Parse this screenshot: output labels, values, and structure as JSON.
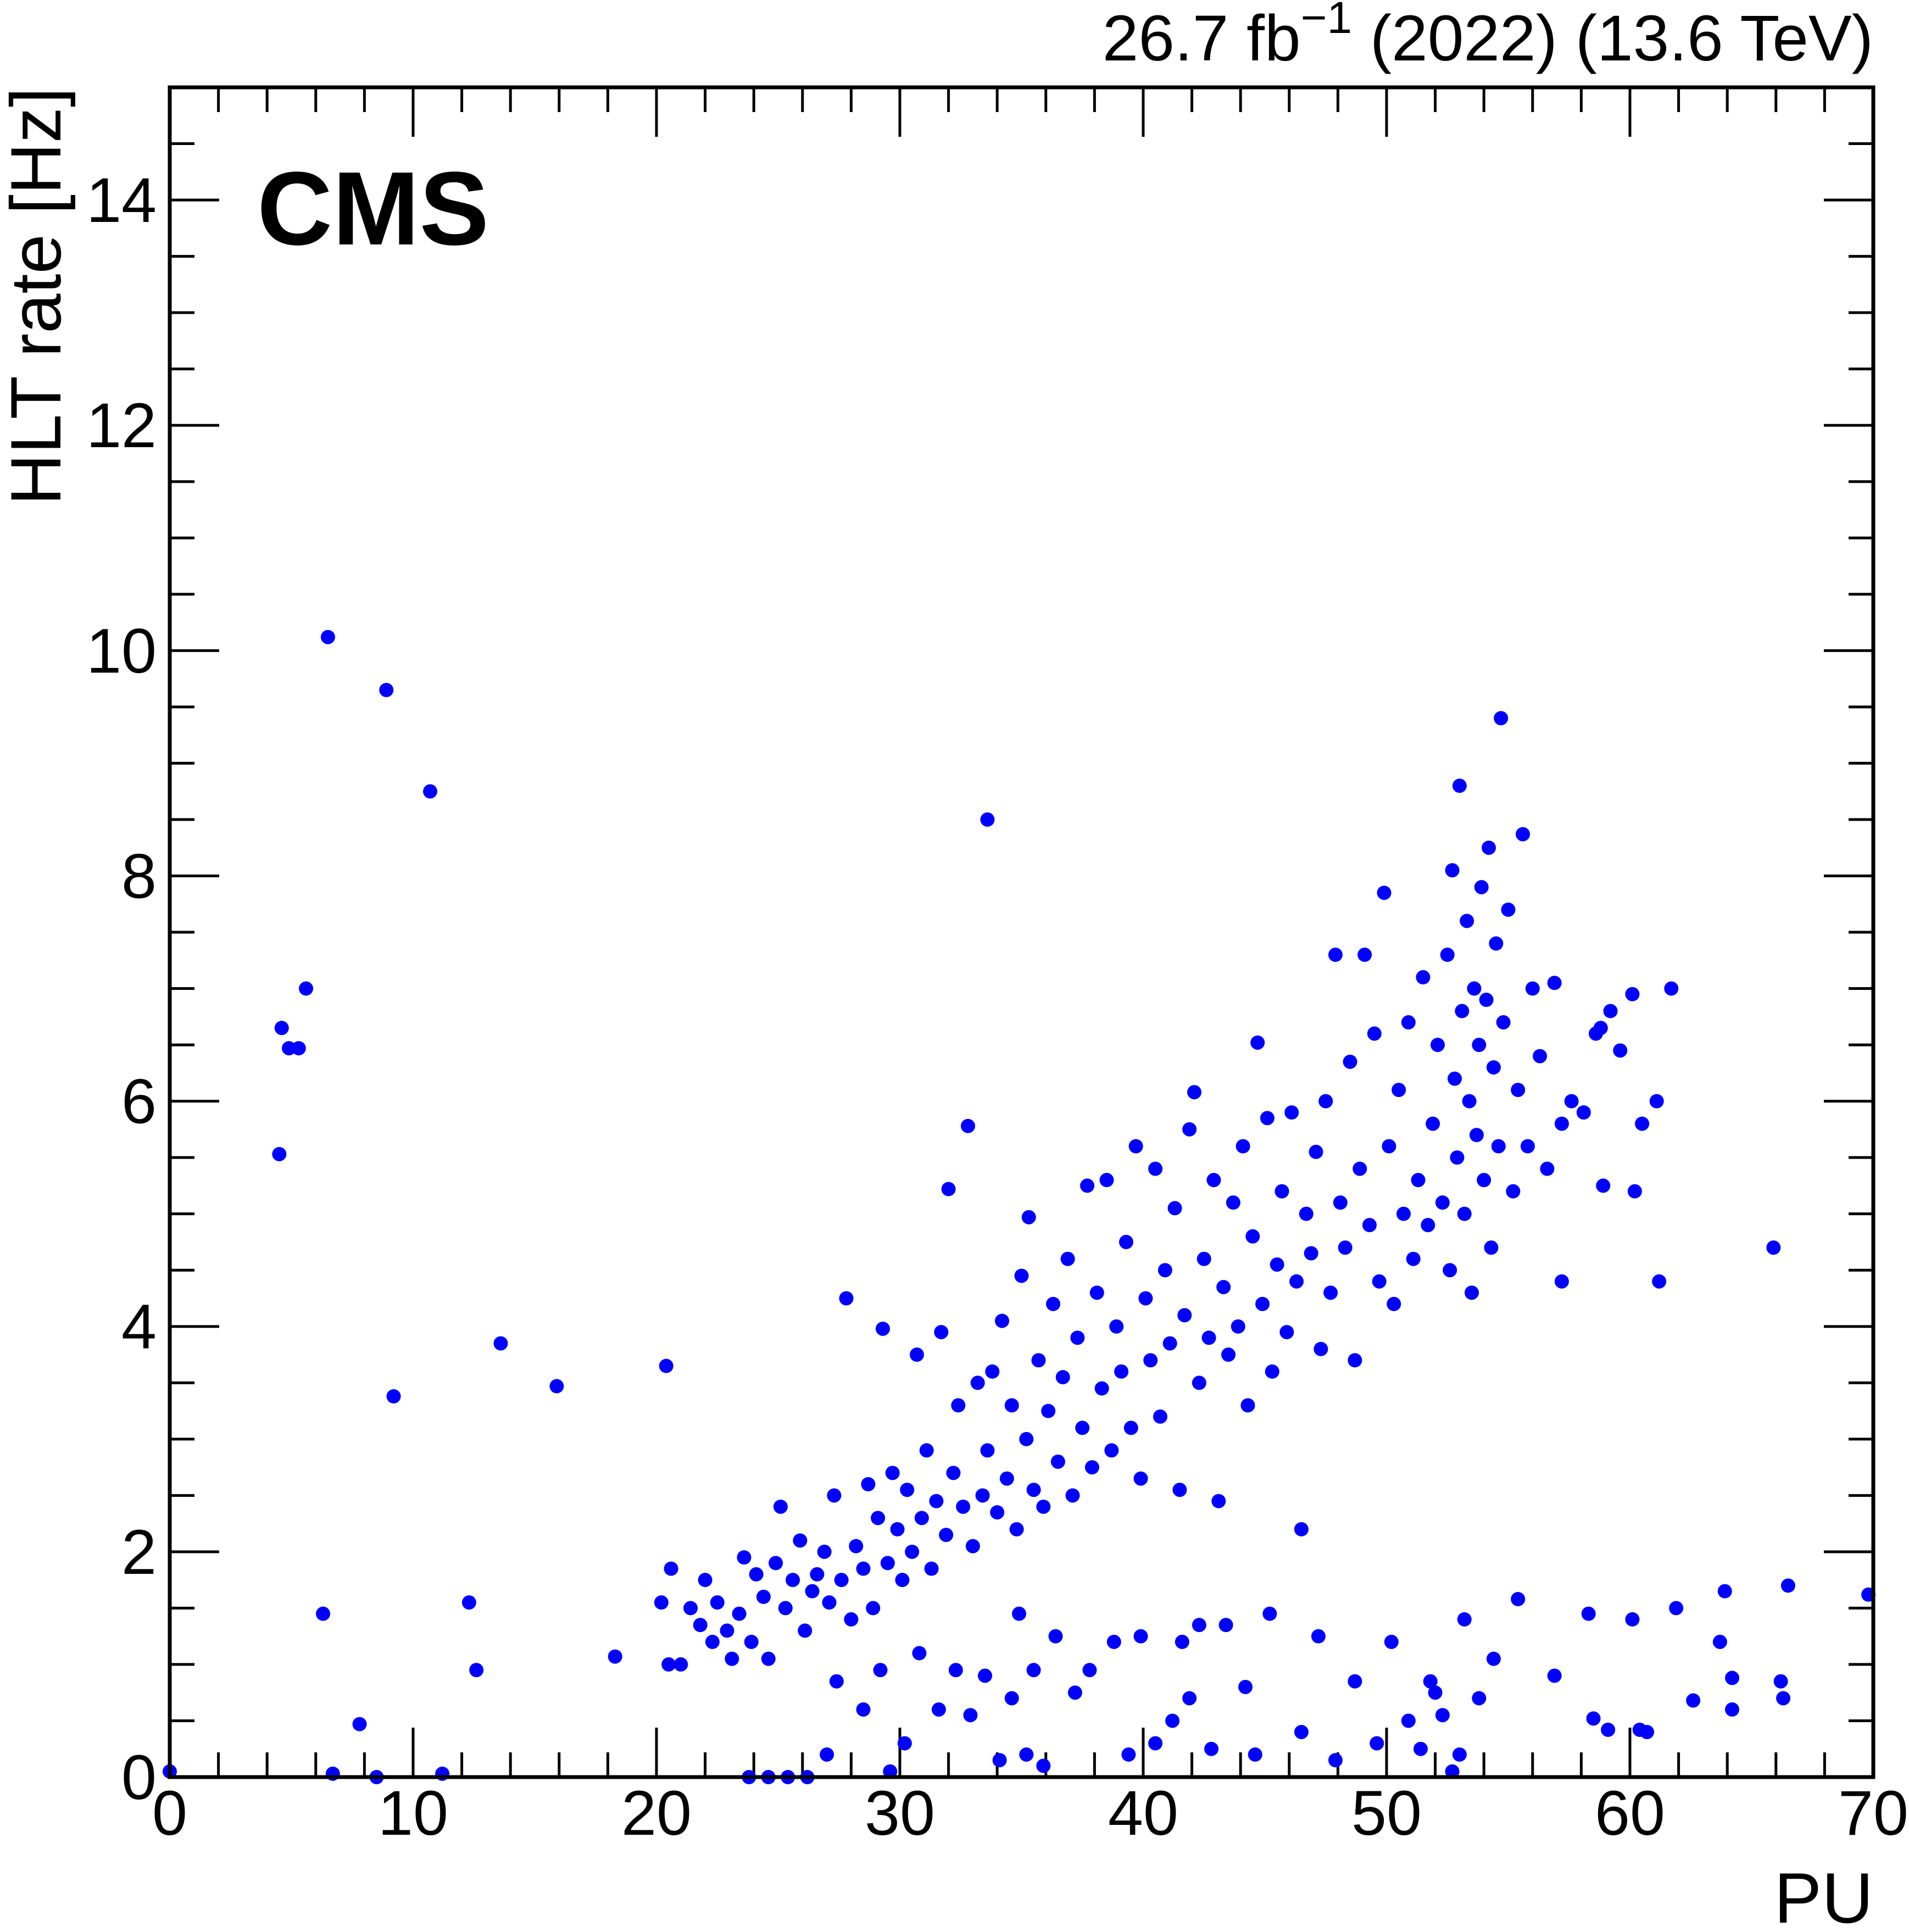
{
  "chart_data": {
    "type": "scatter",
    "experiment_label": "CMS",
    "lumi_label": "26.7 fb",
    "lumi_exponent": "−1",
    "lumi_suffix": " (2022) (13.6 TeV)",
    "xlabel": "PU",
    "ylabel": "HLT rate [Hz]",
    "xlim": [
      0,
      70
    ],
    "ylim": [
      0,
      15
    ],
    "xticks": [
      "0",
      "10",
      "20",
      "30",
      "40",
      "50",
      "60",
      "70"
    ],
    "yticks": [
      "0",
      "2",
      "4",
      "6",
      "8",
      "10",
      "12",
      "14"
    ],
    "grid": false,
    "marker_color": "#0000ff",
    "points": [
      [
        0,
        0.05
      ],
      [
        4.5,
        5.53
      ],
      [
        4.6,
        6.65
      ],
      [
        4.9,
        6.47
      ],
      [
        5.3,
        6.47
      ],
      [
        5.6,
        7.0
      ],
      [
        6.3,
        1.45
      ],
      [
        6.5,
        10.12
      ],
      [
        6.7,
        0.03
      ],
      [
        7.8,
        0.47
      ],
      [
        8.5,
        0.0
      ],
      [
        8.9,
        9.65
      ],
      [
        9.2,
        3.38
      ],
      [
        10.7,
        8.75
      ],
      [
        11.2,
        0.03
      ],
      [
        12.3,
        1.55
      ],
      [
        12.6,
        0.95
      ],
      [
        13.6,
        3.85
      ],
      [
        15.9,
        3.47
      ],
      [
        18.3,
        1.07
      ],
      [
        20.4,
        3.65
      ],
      [
        33.6,
        8.5
      ],
      [
        54.7,
        9.4
      ],
      [
        65.9,
        4.7
      ],
      [
        66.5,
        1.7
      ],
      [
        69.8,
        1.62
      ],
      [
        61.7,
        7.0
      ],
      [
        60.1,
        6.95
      ],
      [
        63.9,
        1.65
      ],
      [
        66.2,
        0.85
      ],
      [
        66.3,
        0.7
      ],
      [
        62.6,
        0.68
      ],
      [
        64.2,
        0.6
      ],
      [
        64.2,
        0.88
      ],
      [
        60.4,
        0.42
      ],
      [
        60.7,
        0.4
      ],
      [
        58.5,
        0.52
      ],
      [
        59.1,
        0.42
      ],
      [
        58.3,
        1.45
      ],
      [
        60.1,
        1.4
      ],
      [
        61.9,
        1.5
      ],
      [
        56.9,
        0.9
      ],
      [
        55.4,
        1.58
      ],
      [
        53.2,
        1.4
      ],
      [
        52.0,
        0.75
      ],
      [
        63.7,
        1.2
      ],
      [
        61.1,
        6.0
      ],
      [
        60.5,
        5.8
      ],
      [
        59.2,
        6.8
      ],
      [
        58.9,
        5.25
      ],
      [
        60.2,
        5.2
      ],
      [
        61.2,
        4.4
      ],
      [
        59.6,
        6.45
      ],
      [
        57.2,
        4.4
      ],
      [
        20.2,
        1.55
      ],
      [
        20.6,
        1.85
      ],
      [
        20.5,
        1.0
      ],
      [
        21.0,
        1.0
      ],
      [
        21.4,
        1.5
      ],
      [
        21.8,
        1.35
      ],
      [
        22.0,
        1.75
      ],
      [
        22.3,
        1.2
      ],
      [
        22.5,
        1.55
      ],
      [
        22.9,
        1.3
      ],
      [
        23.1,
        1.05
      ],
      [
        23.4,
        1.45
      ],
      [
        23.6,
        1.95
      ],
      [
        23.9,
        1.2
      ],
      [
        24.1,
        1.8
      ],
      [
        24.4,
        1.6
      ],
      [
        24.6,
        1.05
      ],
      [
        24.9,
        1.9
      ],
      [
        25.1,
        2.4
      ],
      [
        25.3,
        1.5
      ],
      [
        25.6,
        1.75
      ],
      [
        25.9,
        2.1
      ],
      [
        26.1,
        1.3
      ],
      [
        26.4,
        1.65
      ],
      [
        26.6,
        1.8
      ],
      [
        26.9,
        2.0
      ],
      [
        27.1,
        1.55
      ],
      [
        27.3,
        2.5
      ],
      [
        27.6,
        1.75
      ],
      [
        27.8,
        4.25
      ],
      [
        28.0,
        1.4
      ],
      [
        28.2,
        2.05
      ],
      [
        28.5,
        1.85
      ],
      [
        28.7,
        2.6
      ],
      [
        28.9,
        1.5
      ],
      [
        29.1,
        2.3
      ],
      [
        29.3,
        3.98
      ],
      [
        29.5,
        1.9
      ],
      [
        29.7,
        2.7
      ],
      [
        29.9,
        2.2
      ],
      [
        30.1,
        1.75
      ],
      [
        30.3,
        2.55
      ],
      [
        30.5,
        2.0
      ],
      [
        30.7,
        3.75
      ],
      [
        30.9,
        2.3
      ],
      [
        31.1,
        2.9
      ],
      [
        31.3,
        1.85
      ],
      [
        31.5,
        2.45
      ],
      [
        31.7,
        3.95
      ],
      [
        31.9,
        2.15
      ],
      [
        32.0,
        5.22
      ],
      [
        32.2,
        2.7
      ],
      [
        32.4,
        3.3
      ],
      [
        32.6,
        2.4
      ],
      [
        32.8,
        5.78
      ],
      [
        33.0,
        2.05
      ],
      [
        33.2,
        3.5
      ],
      [
        33.4,
        2.5
      ],
      [
        33.6,
        2.9
      ],
      [
        33.8,
        3.6
      ],
      [
        34.0,
        2.35
      ],
      [
        34.2,
        4.05
      ],
      [
        34.4,
        2.65
      ],
      [
        34.6,
        3.3
      ],
      [
        34.8,
        2.2
      ],
      [
        35.0,
        4.45
      ],
      [
        35.2,
        3.0
      ],
      [
        35.3,
        4.97
      ],
      [
        35.5,
        2.55
      ],
      [
        35.7,
        3.7
      ],
      [
        35.9,
        2.4
      ],
      [
        36.1,
        3.25
      ],
      [
        36.3,
        4.2
      ],
      [
        36.5,
        2.8
      ],
      [
        36.7,
        3.55
      ],
      [
        36.9,
        4.6
      ],
      [
        37.1,
        2.5
      ],
      [
        37.3,
        3.9
      ],
      [
        37.5,
        3.1
      ],
      [
        37.7,
        5.25
      ],
      [
        37.9,
        2.75
      ],
      [
        38.1,
        4.3
      ],
      [
        38.3,
        3.45
      ],
      [
        38.5,
        5.3
      ],
      [
        38.7,
        2.9
      ],
      [
        38.9,
        4.0
      ],
      [
        39.1,
        3.6
      ],
      [
        39.3,
        4.75
      ],
      [
        39.5,
        3.1
      ],
      [
        39.7,
        5.6
      ],
      [
        39.9,
        2.65
      ],
      [
        40.1,
        4.25
      ],
      [
        40.3,
        3.7
      ],
      [
        40.5,
        5.4
      ],
      [
        40.7,
        3.2
      ],
      [
        40.9,
        4.5
      ],
      [
        41.1,
        3.85
      ],
      [
        41.3,
        5.05
      ],
      [
        41.5,
        2.55
      ],
      [
        41.7,
        4.1
      ],
      [
        41.9,
        5.75
      ],
      [
        42.1,
        6.08
      ],
      [
        42.3,
        3.5
      ],
      [
        42.5,
        4.6
      ],
      [
        42.7,
        3.9
      ],
      [
        42.9,
        5.3
      ],
      [
        43.1,
        2.45
      ],
      [
        43.3,
        4.35
      ],
      [
        43.5,
        3.75
      ],
      [
        43.7,
        5.1
      ],
      [
        43.9,
        4.0
      ],
      [
        44.1,
        5.6
      ],
      [
        44.3,
        3.3
      ],
      [
        44.5,
        4.8
      ],
      [
        44.7,
        6.52
      ],
      [
        44.9,
        4.2
      ],
      [
        45.1,
        5.85
      ],
      [
        45.3,
        3.6
      ],
      [
        45.5,
        4.55
      ],
      [
        45.7,
        5.2
      ],
      [
        45.9,
        3.95
      ],
      [
        46.1,
        5.9
      ],
      [
        46.3,
        4.4
      ],
      [
        46.5,
        2.2
      ],
      [
        46.7,
        5.0
      ],
      [
        46.9,
        4.65
      ],
      [
        47.1,
        5.55
      ],
      [
        47.3,
        3.8
      ],
      [
        47.5,
        6.0
      ],
      [
        47.7,
        4.3
      ],
      [
        47.9,
        7.3
      ],
      [
        48.1,
        5.1
      ],
      [
        48.3,
        4.7
      ],
      [
        48.5,
        6.35
      ],
      [
        48.7,
        3.7
      ],
      [
        48.9,
        5.4
      ],
      [
        49.1,
        7.3
      ],
      [
        49.3,
        4.9
      ],
      [
        49.5,
        6.6
      ],
      [
        49.7,
        4.4
      ],
      [
        49.9,
        7.85
      ],
      [
        50.1,
        5.6
      ],
      [
        50.3,
        4.2
      ],
      [
        50.5,
        6.1
      ],
      [
        50.7,
        5.0
      ],
      [
        50.9,
        6.7
      ],
      [
        51.1,
        4.6
      ],
      [
        51.3,
        5.3
      ],
      [
        51.5,
        7.1
      ],
      [
        51.7,
        4.9
      ],
      [
        51.9,
        5.8
      ],
      [
        52.1,
        6.5
      ],
      [
        52.3,
        5.1
      ],
      [
        52.5,
        7.3
      ],
      [
        52.6,
        4.5
      ],
      [
        52.7,
        8.05
      ],
      [
        52.8,
        6.2
      ],
      [
        52.9,
        5.5
      ],
      [
        53.0,
        8.8
      ],
      [
        53.1,
        6.8
      ],
      [
        53.2,
        5.0
      ],
      [
        53.3,
        7.6
      ],
      [
        53.4,
        6.0
      ],
      [
        53.5,
        4.3
      ],
      [
        53.6,
        7.0
      ],
      [
        53.7,
        5.7
      ],
      [
        53.8,
        6.5
      ],
      [
        53.9,
        7.9
      ],
      [
        54.0,
        5.3
      ],
      [
        54.1,
        6.9
      ],
      [
        54.2,
        8.25
      ],
      [
        54.3,
        4.7
      ],
      [
        54.4,
        6.3
      ],
      [
        54.5,
        7.4
      ],
      [
        54.6,
        5.6
      ],
      [
        54.8,
        6.7
      ],
      [
        55.0,
        7.7
      ],
      [
        55.2,
        5.2
      ],
      [
        55.4,
        6.1
      ],
      [
        55.6,
        8.37
      ],
      [
        55.8,
        5.6
      ],
      [
        56.0,
        7.0
      ],
      [
        56.3,
        6.4
      ],
      [
        56.6,
        5.4
      ],
      [
        56.9,
        7.05
      ],
      [
        57.2,
        5.8
      ],
      [
        57.6,
        6.0
      ],
      [
        58.1,
        5.9
      ],
      [
        58.6,
        6.6
      ],
      [
        58.8,
        6.65
      ],
      [
        23.8,
        0
      ],
      [
        24.6,
        0
      ],
      [
        25.4,
        0
      ],
      [
        26.2,
        0
      ],
      [
        27.0,
        0.2
      ],
      [
        27.4,
        0.85
      ],
      [
        28.5,
        0.6
      ],
      [
        29.2,
        0.95
      ],
      [
        29.6,
        0.05
      ],
      [
        30.2,
        0.3
      ],
      [
        30.8,
        1.1
      ],
      [
        31.6,
        0.6
      ],
      [
        32.3,
        0.95
      ],
      [
        32.9,
        0.55
      ],
      [
        33.5,
        0.9
      ],
      [
        34.1,
        0.15
      ],
      [
        34.6,
        0.7
      ],
      [
        34.9,
        1.45
      ],
      [
        35.2,
        0.2
      ],
      [
        35.5,
        0.95
      ],
      [
        35.9,
        0.1
      ],
      [
        36.4,
        1.25
      ],
      [
        37.2,
        0.75
      ],
      [
        37.8,
        0.95
      ],
      [
        38.8,
        1.2
      ],
      [
        39.4,
        0.2
      ],
      [
        39.9,
        1.25
      ],
      [
        40.5,
        0.3
      ],
      [
        41.2,
        0.5
      ],
      [
        41.6,
        1.2
      ],
      [
        41.9,
        0.7
      ],
      [
        42.3,
        1.35
      ],
      [
        42.8,
        0.25
      ],
      [
        43.4,
        1.35
      ],
      [
        44.2,
        0.8
      ],
      [
        44.6,
        0.2
      ],
      [
        45.2,
        1.45
      ],
      [
        46.5,
        0.4
      ],
      [
        47.2,
        1.25
      ],
      [
        47.9,
        0.15
      ],
      [
        48.7,
        0.85
      ],
      [
        49.6,
        0.3
      ],
      [
        50.2,
        1.2
      ],
      [
        50.9,
        0.5
      ],
      [
        51.4,
        0.25
      ],
      [
        51.8,
        0.85
      ],
      [
        52.3,
        0.55
      ],
      [
        52.7,
        0.05
      ],
      [
        53.0,
        0.2
      ],
      [
        53.8,
        0.7
      ],
      [
        54.4,
        1.05
      ]
    ]
  }
}
